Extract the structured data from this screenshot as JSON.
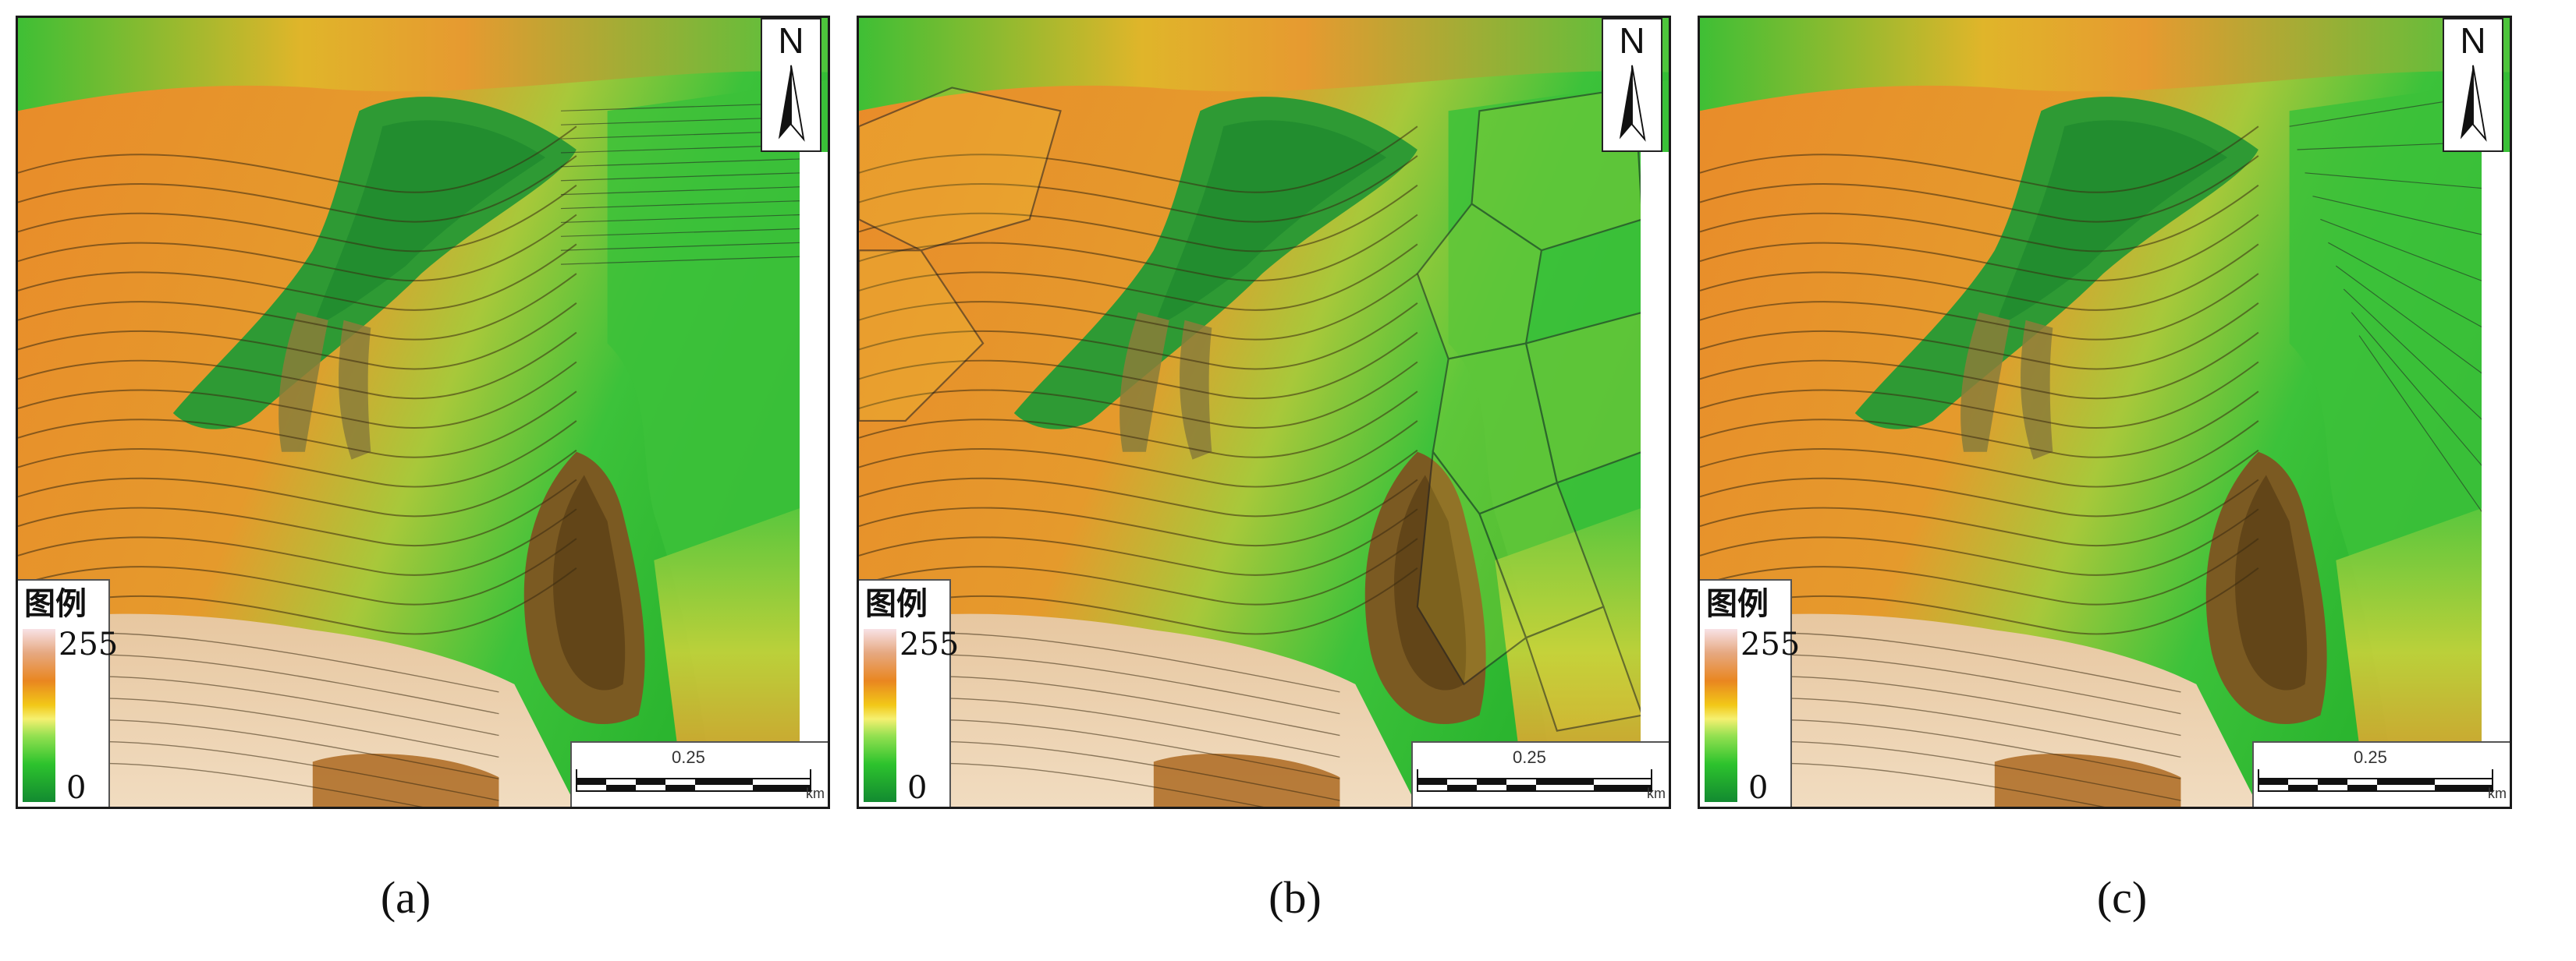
{
  "panels": [
    {
      "caption": "(a)",
      "north_label": "N",
      "legend": {
        "title": "图例",
        "max_label": "255",
        "min_label": "0"
      },
      "scale": {
        "value_label": "0.25",
        "unit_label": "km"
      },
      "fill_style": "smooth-interpolation"
    },
    {
      "caption": "(b)",
      "north_label": "N",
      "legend": {
        "title": "图例",
        "max_label": "255",
        "min_label": "0"
      },
      "scale": {
        "value_label": "0.25",
        "unit_label": "km"
      },
      "fill_style": "voronoi-polygons"
    },
    {
      "caption": "(c)",
      "north_label": "N",
      "legend": {
        "title": "图例",
        "max_label": "255",
        "min_label": "0"
      },
      "scale": {
        "value_label": "0.25",
        "unit_label": "km"
      },
      "fill_style": "tin-interpolation"
    }
  ],
  "colors": {
    "ramp_high": "#f8e2e6",
    "ramp_orange": "#e98620",
    "ramp_yellow": "#f5f070",
    "ramp_green": "#2dc32d",
    "ramp_low": "#128a30"
  }
}
